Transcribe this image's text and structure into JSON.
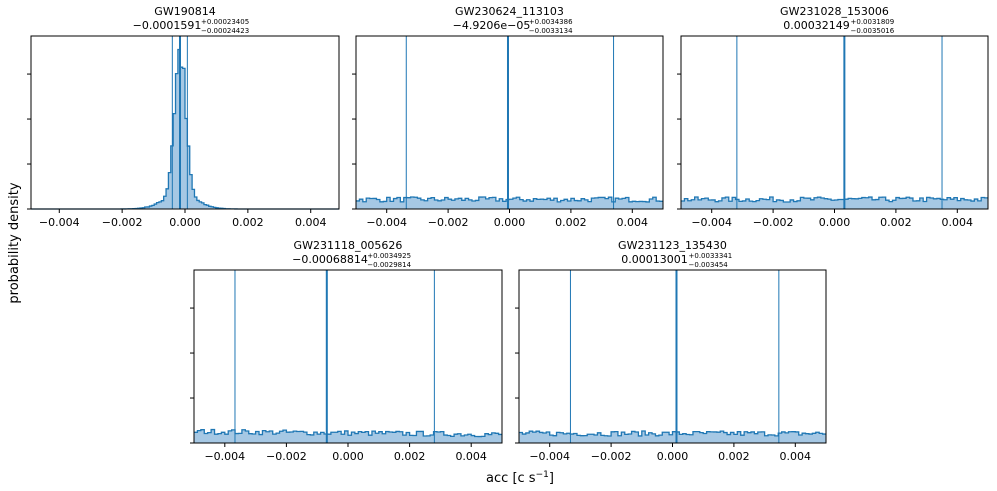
{
  "figure": {
    "ylabel": "probability density",
    "xlabel": "acc [c s",
    "xlabel_sup": "−1",
    "xlabel_end": "]"
  },
  "chart_data": [
    {
      "type": "histogram",
      "event": "GW190814",
      "median_text": "−0.0001591",
      "upper_text": "+0.00023405",
      "lower_text": "−0.00024423",
      "median": -0.0001591,
      "upper_err": 0.00023405,
      "lower_err": 0.00024423,
      "xlim": [
        -0.0049,
        0.0049
      ],
      "xticks": [
        -0.004,
        -0.002,
        0.0,
        0.002,
        0.004
      ],
      "xticklabels": [
        "−0.004",
        "−0.002",
        "0.000",
        "0.002",
        "0.004"
      ],
      "shape": "peaked",
      "line_color": "#1f77b4",
      "fill_color": "#a6c8e4"
    },
    {
      "type": "histogram",
      "event": "GW230624_113103",
      "median_text": "−4.9206e−05",
      "upper_text": "+0.0034386",
      "lower_text": "−0.0033134",
      "median": -4.9206e-05,
      "upper_err": 0.0034386,
      "lower_err": 0.0033134,
      "xlim": [
        -0.005,
        0.005
      ],
      "xticks": [
        -0.004,
        -0.002,
        0.0,
        0.002,
        0.004
      ],
      "xticklabels": [
        "−0.004",
        "−0.002",
        "0.000",
        "0.002",
        "0.004"
      ],
      "shape": "flat",
      "line_color": "#1f77b4",
      "fill_color": "#a6c8e4"
    },
    {
      "type": "histogram",
      "event": "GW231028_153006",
      "median_text": "0.00032149",
      "upper_text": "+0.0031809",
      "lower_text": "−0.0035016",
      "median": 0.00032149,
      "upper_err": 0.0031809,
      "lower_err": 0.0035016,
      "xlim": [
        -0.005,
        0.005
      ],
      "xticks": [
        -0.004,
        -0.002,
        0.0,
        0.002,
        0.004
      ],
      "xticklabels": [
        "−0.004",
        "−0.002",
        "0.000",
        "0.002",
        "0.004"
      ],
      "shape": "flat",
      "line_color": "#1f77b4",
      "fill_color": "#a6c8e4"
    },
    {
      "type": "histogram",
      "event": "GW231118_005626",
      "median_text": "−0.00068814",
      "upper_text": "+0.0034925",
      "lower_text": "−0.0029814",
      "median": -0.00068814,
      "upper_err": 0.0034925,
      "lower_err": 0.0029814,
      "xlim": [
        -0.005,
        0.005
      ],
      "xticks": [
        -0.004,
        -0.002,
        0.0,
        0.002,
        0.004
      ],
      "xticklabels": [
        "−0.004",
        "−0.002",
        "0.000",
        "0.002",
        "0.004"
      ],
      "shape": "flat",
      "line_color": "#1f77b4",
      "fill_color": "#a6c8e4"
    },
    {
      "type": "histogram",
      "event": "GW231123_135430",
      "median_text": "0.00013001",
      "upper_text": "+0.0033341",
      "lower_text": "−0.003454",
      "median": 0.00013001,
      "upper_err": 0.0033341,
      "lower_err": 0.003454,
      "xlim": [
        -0.005,
        0.005
      ],
      "xticks": [
        -0.004,
        -0.002,
        0.0,
        0.002,
        0.004
      ],
      "xticklabels": [
        "−0.004",
        "−0.002",
        "0.000",
        "0.002",
        "0.004"
      ],
      "shape": "flat",
      "line_color": "#1f77b4",
      "fill_color": "#a6c8e4"
    }
  ]
}
